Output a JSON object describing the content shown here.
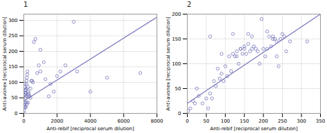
{
  "chart_data": [
    {
      "type": "scatter",
      "title": "1",
      "xlabel": "Anti-rebif [reciprocal serum dilution]",
      "ylabel": "Anti-avonex [reciprocal serum dilution]",
      "xlim": [
        0,
        8000
      ],
      "ylim": [
        0,
        320
      ],
      "xticks": [
        0,
        2000,
        4000,
        6000,
        8000
      ],
      "yticks": [
        0,
        50,
        100,
        150,
        200,
        250,
        300
      ],
      "grid": true,
      "series": [
        {
          "type": "scatter",
          "marker": "circle",
          "color": "#7777bb",
          "x": [
            10,
            20,
            30,
            40,
            50,
            60,
            70,
            80,
            90,
            100,
            110,
            120,
            130,
            140,
            150,
            160,
            170,
            180,
            200,
            220,
            240,
            260,
            280,
            300,
            350,
            400,
            450,
            500,
            600,
            700,
            900,
            1000,
            1200,
            1500,
            1800,
            2000,
            2500,
            3000,
            4000,
            5000,
            7000,
            50,
            70,
            100,
            130,
            160,
            200,
            250,
            320,
            400,
            550,
            800,
            1000,
            1300,
            1600,
            2200,
            3200
          ],
          "values": [
            0,
            10,
            25,
            30,
            85,
            95,
            60,
            75,
            65,
            60,
            50,
            65,
            75,
            80,
            55,
            95,
            105,
            115,
            125,
            135,
            85,
            70,
            60,
            65,
            55,
            50,
            105,
            105,
            230,
            240,
            155,
            205,
            165,
            55,
            70,
            120,
            155,
            295,
            70,
            115,
            130,
            20,
            20,
            35,
            20,
            35,
            30,
            35,
            55,
            80,
            100,
            130,
            135,
            110,
            95,
            135,
            135
          ]
        },
        {
          "type": "line",
          "line_style": "solid",
          "color": "#7777bb",
          "x": [
            0,
            8000
          ],
          "values": [
            40,
            310
          ]
        }
      ]
    },
    {
      "type": "scatter",
      "title": "2",
      "xlabel": "Anti-rebif [reciprocal serum dilution]",
      "ylabel": "Anti-avonex [reciprocal serum dilution]",
      "xlim": [
        0,
        350
      ],
      "ylim": [
        0,
        200
      ],
      "xticks": [
        0,
        50,
        100,
        150,
        200,
        250,
        300,
        350
      ],
      "yticks": [
        0,
        50,
        100,
        150,
        200
      ],
      "grid": true,
      "series": [
        {
          "type": "scatter",
          "marker": "circle",
          "color": "#7777bb",
          "x": [
            2,
            8,
            15,
            20,
            25,
            30,
            40,
            50,
            55,
            60,
            65,
            70,
            75,
            80,
            85,
            90,
            95,
            100,
            105,
            110,
            115,
            120,
            125,
            130,
            135,
            140,
            145,
            150,
            155,
            160,
            165,
            170,
            175,
            180,
            185,
            190,
            200,
            205,
            210,
            215,
            220,
            225,
            230,
            235,
            240,
            250,
            255,
            260,
            270,
            315,
            60,
            90,
            120,
            130,
            140,
            150,
            160,
            170,
            195,
            210,
            225,
            235,
            245
          ],
          "values": [
            5,
            10,
            25,
            20,
            50,
            35,
            20,
            30,
            10,
            40,
            30,
            65,
            55,
            90,
            70,
            80,
            65,
            95,
            75,
            115,
            85,
            120,
            115,
            115,
            100,
            130,
            120,
            130,
            120,
            140,
            125,
            130,
            135,
            130,
            125,
            100,
            130,
            115,
            130,
            155,
            135,
            155,
            150,
            115,
            95,
            160,
            155,
            125,
            145,
            145,
            155,
            120,
            160,
            125,
            130,
            135,
            160,
            155,
            190,
            165,
            150,
            145,
            150
          ]
        },
        {
          "type": "line",
          "line_style": "solid",
          "color": "#7777bb",
          "x": [
            0,
            350
          ],
          "values": [
            20,
            200
          ]
        }
      ]
    }
  ]
}
